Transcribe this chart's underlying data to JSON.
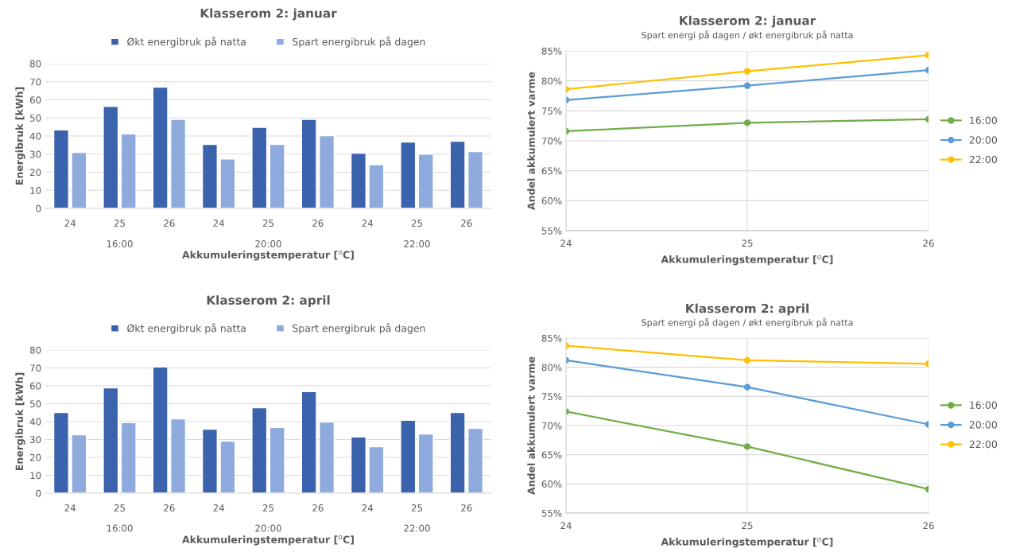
{
  "chart_data": [
    {
      "type": "bar",
      "title": "Klasserom 2: januar",
      "xlabel": "Akkumuleringstemperatur [$^{o}$C]",
      "ylabel": "Energibruk [kWh]",
      "categories": [
        "24",
        "25",
        "26",
        "24",
        "25",
        "26",
        "24",
        "25",
        "26"
      ],
      "series": [
        {
          "name": "Økt energibruk på natta",
          "color": "#3a62ad",
          "values": [
            43.4,
            56.3,
            67.0,
            35.4,
            44.8,
            49.2,
            30.5,
            36.7,
            37.1
          ]
        },
        {
          "name": "Spart energibruk på dagen",
          "color": "#8faadc",
          "values": [
            31.0,
            41.2,
            49.2,
            27.3,
            35.4,
            40.2,
            24.2,
            30.0,
            31.4
          ]
        }
      ],
      "annotations": [
        "16:00",
        "20:00",
        "22:00"
      ],
      "ylim": [
        0,
        80
      ],
      "yticks": [
        0,
        10,
        20,
        30,
        40,
        50,
        60,
        70,
        80
      ],
      "grid": "y",
      "legend": "top"
    },
    {
      "type": "line",
      "title": "Klasserom 2: januar",
      "subtitle": "Spart energi på dagen / økt energibruk på natta",
      "xlabel": "Akkumuleringstemperatur [$^{o}$C]",
      "ylabel": "Andel akkumulert varme",
      "x": [
        24,
        25,
        26
      ],
      "series": [
        {
          "name": "16:00",
          "color": "#70ad47",
          "values": [
            71.6,
            73.0,
            73.6
          ]
        },
        {
          "name": "20:00",
          "color": "#5b9bd5",
          "values": [
            76.8,
            79.2,
            81.8
          ]
        },
        {
          "name": "22:00",
          "color": "#ffc000",
          "values": [
            78.6,
            81.6,
            84.3
          ]
        }
      ],
      "xlim": [
        24,
        26
      ],
      "xticks": [
        24,
        25,
        26
      ],
      "ylim": [
        55,
        85
      ],
      "yticks": [
        {
          "value": 55,
          "label": "55%"
        },
        {
          "value": 60,
          "label": "60%"
        },
        {
          "value": 65,
          "label": "65%"
        },
        {
          "value": 70,
          "label": "70%"
        },
        {
          "value": 75,
          "label": "75%"
        },
        {
          "value": 80,
          "label": "80%"
        },
        {
          "value": 85,
          "label": "85%"
        }
      ],
      "grid": true,
      "legend": "right",
      "marker": "circle",
      "line_style": "solid"
    },
    {
      "type": "bar",
      "title": "Klasserom 2: april",
      "xlabel": "Akkumuleringstemperatur [$^{o}$C]",
      "ylabel": "Energibruk [kWh]",
      "categories": [
        "24",
        "25",
        "26",
        "24",
        "25",
        "26",
        "24",
        "25",
        "26"
      ],
      "series": [
        {
          "name": "Økt energibruk på natta",
          "color": "#3a62ad",
          "values": [
            45.1,
            58.9,
            70.5,
            35.8,
            47.8,
            56.7,
            31.4,
            40.7,
            45.1
          ]
        },
        {
          "name": "Spart energibruk på dagen",
          "color": "#8faadc",
          "values": [
            32.6,
            39.4,
            41.5,
            29.1,
            36.7,
            39.8,
            26.0,
            33.1,
            36.2
          ]
        }
      ],
      "annotations": [
        "16:00",
        "20:00",
        "22:00"
      ],
      "ylim": [
        0,
        80
      ],
      "yticks": [
        0,
        10,
        20,
        30,
        40,
        50,
        60,
        70,
        80
      ],
      "grid": "y",
      "legend": "top"
    },
    {
      "type": "line",
      "title": "Klasserom 2: april",
      "subtitle": "Spart energi på dagen / økt energibruk på natta",
      "xlabel": "Akkumuleringstemperatur [$^{o}$C]",
      "ylabel": "Andel akkumulert varme",
      "x": [
        24,
        25,
        26
      ],
      "series": [
        {
          "name": "16:00",
          "color": "#70ad47",
          "values": [
            72.4,
            66.4,
            59.1
          ]
        },
        {
          "name": "20:00",
          "color": "#5b9bd5",
          "values": [
            81.2,
            76.6,
            70.2
          ]
        },
        {
          "name": "22:00",
          "color": "#ffc000",
          "values": [
            83.7,
            81.2,
            80.6
          ]
        }
      ],
      "xlim": [
        24,
        26
      ],
      "xticks": [
        24,
        25,
        26
      ],
      "ylim": [
        55,
        85
      ],
      "yticks": [
        {
          "value": 55,
          "label": "55%"
        },
        {
          "value": 60,
          "label": "60%"
        },
        {
          "value": 65,
          "label": "65%"
        },
        {
          "value": 70,
          "label": "70%"
        },
        {
          "value": 75,
          "label": "75%"
        },
        {
          "value": 80,
          "label": "80%"
        },
        {
          "value": 85,
          "label": "85%"
        }
      ],
      "grid": true,
      "legend": "right",
      "marker": "circle",
      "line_style": "solid"
    }
  ]
}
